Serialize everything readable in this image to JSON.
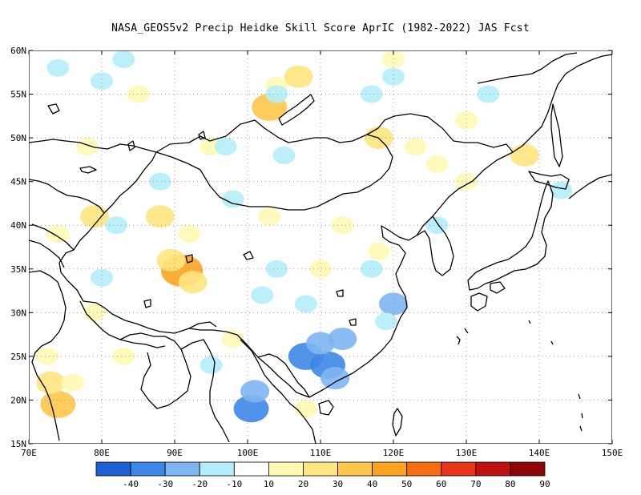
{
  "title": "NASA_GEOS5v2 Precip Heidke Skill Score AprIC (1982-2022) JAS Fcst",
  "map": {
    "lon_range": [
      70,
      150
    ],
    "lat_range": [
      15,
      60
    ],
    "lon_ticks": [
      "70E",
      "80E",
      "90E",
      "100E",
      "110E",
      "120E",
      "130E",
      "140E",
      "150E"
    ],
    "lat_ticks": [
      "15N",
      "20N",
      "25N",
      "30N",
      "35N",
      "40N",
      "45N",
      "50N",
      "55N",
      "60N"
    ],
    "gridlines": "dotted",
    "land_outline_color": "#000000"
  },
  "colorbar": {
    "colors": [
      "#1f5fd6",
      "#3d87e8",
      "#7eb6f3",
      "#b4eefa",
      "#ffffff",
      "#fff9b4",
      "#ffe680",
      "#fec74b",
      "#fca420",
      "#f86c12",
      "#e83418",
      "#c11010",
      "#8f0606"
    ],
    "labels": [
      "-40",
      "-30",
      "-20",
      "-10",
      "10",
      "20",
      "30",
      "40",
      "50",
      "60",
      "70",
      "80",
      "90"
    ]
  },
  "field_patches": [
    {
      "lon": 91,
      "lat": 34.8,
      "level": 4
    },
    {
      "lon": 89.5,
      "lat": 36,
      "level": 2
    },
    {
      "lon": 92.5,
      "lat": 33.5,
      "level": 2
    },
    {
      "lon": 74,
      "lat": 19.5,
      "level": 3
    },
    {
      "lon": 73,
      "lat": 22,
      "level": 2
    },
    {
      "lon": 72.5,
      "lat": 25,
      "level": 1
    },
    {
      "lon": 76,
      "lat": 22,
      "level": 1
    },
    {
      "lon": 88,
      "lat": 41,
      "level": 2
    },
    {
      "lon": 92,
      "lat": 39,
      "level": 1
    },
    {
      "lon": 79,
      "lat": 41,
      "level": 2
    },
    {
      "lon": 74,
      "lat": 39,
      "level": 1
    },
    {
      "lon": 103,
      "lat": 53.5,
      "level": 3
    },
    {
      "lon": 104,
      "lat": 56,
      "level": 1
    },
    {
      "lon": 107,
      "lat": 57,
      "level": 2
    },
    {
      "lon": 118,
      "lat": 50,
      "level": 2
    },
    {
      "lon": 123,
      "lat": 49,
      "level": 1
    },
    {
      "lon": 126,
      "lat": 47,
      "level": 1
    },
    {
      "lon": 138,
      "lat": 48,
      "level": 2
    },
    {
      "lon": 130,
      "lat": 45,
      "level": 1
    },
    {
      "lon": 113,
      "lat": 40,
      "level": 1
    },
    {
      "lon": 103,
      "lat": 41,
      "level": 1
    },
    {
      "lon": 118,
      "lat": 37,
      "level": 1
    },
    {
      "lon": 85,
      "lat": 55,
      "level": 1
    },
    {
      "lon": 78,
      "lat": 49,
      "level": 1
    },
    {
      "lon": 95,
      "lat": 49,
      "level": 1
    },
    {
      "lon": 110,
      "lat": 35,
      "level": 1
    },
    {
      "lon": 120,
      "lat": 59,
      "level": 1
    },
    {
      "lon": 130,
      "lat": 52,
      "level": 1
    },
    {
      "lon": 98,
      "lat": 27,
      "level": 1
    },
    {
      "lon": 108,
      "lat": 19,
      "level": 1
    },
    {
      "lon": 79,
      "lat": 30,
      "level": 1
    },
    {
      "lon": 83,
      "lat": 25,
      "level": 1
    },
    {
      "lon": 108,
      "lat": 25,
      "level": -3
    },
    {
      "lon": 111,
      "lat": 24,
      "level": -3
    },
    {
      "lon": 110,
      "lat": 26.5,
      "level": -2
    },
    {
      "lon": 113,
      "lat": 27,
      "level": -2
    },
    {
      "lon": 100.5,
      "lat": 19,
      "level": -3
    },
    {
      "lon": 101,
      "lat": 21,
      "level": -2
    },
    {
      "lon": 112,
      "lat": 22.5,
      "level": -2
    },
    {
      "lon": 120,
      "lat": 31,
      "level": -2
    },
    {
      "lon": 119,
      "lat": 29,
      "level": -1
    },
    {
      "lon": 117,
      "lat": 35,
      "level": -1
    },
    {
      "lon": 102,
      "lat": 32,
      "level": -1
    },
    {
      "lon": 104,
      "lat": 35,
      "level": -1
    },
    {
      "lon": 108,
      "lat": 31,
      "level": -1
    },
    {
      "lon": 74,
      "lat": 58,
      "level": -1
    },
    {
      "lon": 80,
      "lat": 56.5,
      "level": -1
    },
    {
      "lon": 83,
      "lat": 59,
      "level": -1
    },
    {
      "lon": 104,
      "lat": 55,
      "level": -1
    },
    {
      "lon": 117,
      "lat": 55,
      "level": -1
    },
    {
      "lon": 120,
      "lat": 57,
      "level": -1
    },
    {
      "lon": 82,
      "lat": 40,
      "level": -1
    },
    {
      "lon": 88,
      "lat": 45,
      "level": -1
    },
    {
      "lon": 97,
      "lat": 49,
      "level": -1
    },
    {
      "lon": 98,
      "lat": 43,
      "level": -1
    },
    {
      "lon": 105,
      "lat": 48,
      "level": -1
    },
    {
      "lon": 126,
      "lat": 40,
      "level": -1
    },
    {
      "lon": 133,
      "lat": 55,
      "level": -1
    },
    {
      "lon": 143,
      "lat": 44,
      "level": -1
    },
    {
      "lon": 95,
      "lat": 24,
      "level": -1
    },
    {
      "lon": 80,
      "lat": 34,
      "level": -1
    }
  ]
}
